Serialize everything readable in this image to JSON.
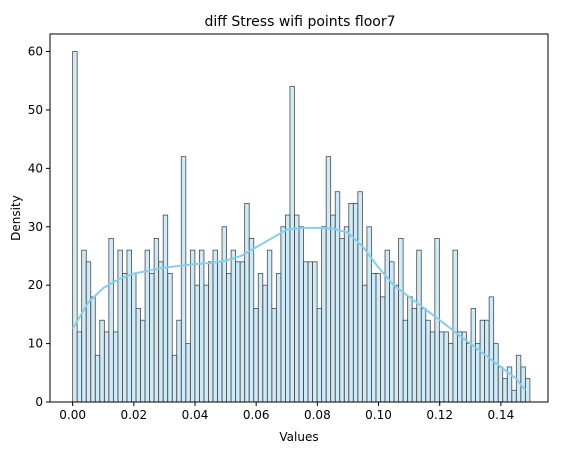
{
  "chart_data": {
    "type": "bar",
    "title": "diff Stress wifi points floor7",
    "xlabel": "Values",
    "ylabel": "Density",
    "xlim": [
      -0.0074,
      0.1554
    ],
    "ylim": [
      0,
      63
    ],
    "xticks": [
      0.0,
      0.02,
      0.04,
      0.06,
      0.08,
      0.1,
      0.12,
      0.14
    ],
    "xtick_labels": [
      "0.00",
      "0.02",
      "0.04",
      "0.06",
      "0.08",
      "0.10",
      "0.12",
      "0.14"
    ],
    "yticks": [
      0,
      10,
      20,
      30,
      40,
      50,
      60
    ],
    "ytick_labels": [
      "0",
      "10",
      "20",
      "30",
      "40",
      "50",
      "60"
    ],
    "grid": false,
    "bins": {
      "start": 0.0,
      "width": 0.00148,
      "values": [
        60,
        12,
        26,
        24,
        18,
        8,
        14,
        12,
        28,
        12,
        26,
        22,
        26,
        22,
        16,
        14,
        26,
        22,
        28,
        24,
        32,
        22,
        8,
        14,
        42,
        10,
        26,
        20,
        26,
        20,
        24,
        26,
        24,
        30,
        22,
        26,
        24,
        24,
        34,
        28,
        16,
        22,
        20,
        26,
        16,
        22,
        30,
        32,
        54,
        32,
        30,
        24,
        24,
        24,
        16,
        30,
        42,
        32,
        36,
        28,
        30,
        34,
        34,
        36,
        20,
        30,
        22,
        22,
        18,
        26,
        24,
        20,
        28,
        14,
        18,
        16,
        26,
        16,
        14,
        12,
        28,
        12,
        12,
        10,
        26,
        12,
        12,
        10,
        16,
        10,
        14,
        14,
        18,
        10,
        6,
        4,
        6,
        2,
        8,
        6,
        4
      ],
      "fill_color": "#87CEEB",
      "fill_opacity": 0.4,
      "edge_color": "#4a4a4a"
    },
    "kde": {
      "color": "#87CEEB",
      "x": [
        0.0,
        0.005,
        0.01,
        0.015,
        0.02,
        0.025,
        0.03,
        0.035,
        0.04,
        0.045,
        0.05,
        0.055,
        0.06,
        0.065,
        0.07,
        0.075,
        0.08,
        0.085,
        0.09,
        0.095,
        0.1,
        0.105,
        0.11,
        0.115,
        0.12,
        0.125,
        0.13,
        0.135,
        0.14,
        0.145,
        0.148
      ],
      "y": [
        12.5,
        17,
        19.5,
        21,
        22,
        22.5,
        23,
        23.3,
        23.6,
        23.8,
        24.2,
        25,
        26.5,
        28,
        29.5,
        29.8,
        29.8,
        29.7,
        29,
        26.5,
        23,
        20,
        18,
        16,
        14,
        12,
        10,
        8,
        6,
        4,
        2
      ]
    }
  }
}
